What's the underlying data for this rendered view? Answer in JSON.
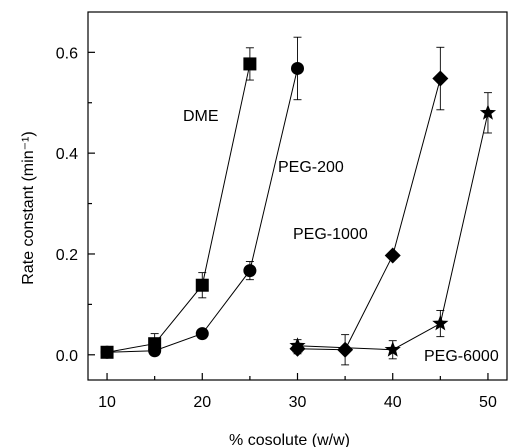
{
  "chart_data": {
    "type": "scatter",
    "title": "",
    "xlabel": "% cosolute (w/w)",
    "ylabel": "Rate constant (min⁻¹)",
    "xlim": [
      8,
      52
    ],
    "ylim": [
      -0.05,
      0.68
    ],
    "x_ticks": [
      10,
      20,
      30,
      40,
      50
    ],
    "y_ticks": [
      0.0,
      0.2,
      0.4,
      0.6
    ],
    "x_tick_labels": [
      "10",
      "20",
      "30",
      "40",
      "50"
    ],
    "y_tick_labels": [
      "0.0",
      "0.2",
      "0.4",
      "0.6"
    ],
    "grid": false,
    "legend": "none (series labeled inline)",
    "series": [
      {
        "name": "DME",
        "marker": "square",
        "x": [
          10,
          15,
          20,
          25
        ],
        "y": [
          0.005,
          0.022,
          0.138,
          0.577
        ],
        "err": [
          0.01,
          0.02,
          0.025,
          0.032
        ]
      },
      {
        "name": "PEG-200",
        "marker": "circle",
        "x": [
          10,
          15,
          20,
          25,
          30
        ],
        "y": [
          0.005,
          0.008,
          0.042,
          0.167,
          0.568
        ],
        "err": [
          0.005,
          0.006,
          0.006,
          0.018,
          0.062
        ]
      },
      {
        "name": "PEG-1000",
        "marker": "diamond",
        "x": [
          30,
          35,
          40,
          45
        ],
        "y": [
          0.012,
          0.01,
          0.197,
          0.548
        ],
        "err": [
          0.01,
          0.03,
          0.006,
          0.062
        ]
      },
      {
        "name": "PEG-6000",
        "marker": "star",
        "x": [
          30,
          40,
          45,
          50
        ],
        "y": [
          0.018,
          0.01,
          0.062,
          0.48
        ],
        "err": [
          0.012,
          0.018,
          0.026,
          0.04
        ]
      }
    ]
  }
}
